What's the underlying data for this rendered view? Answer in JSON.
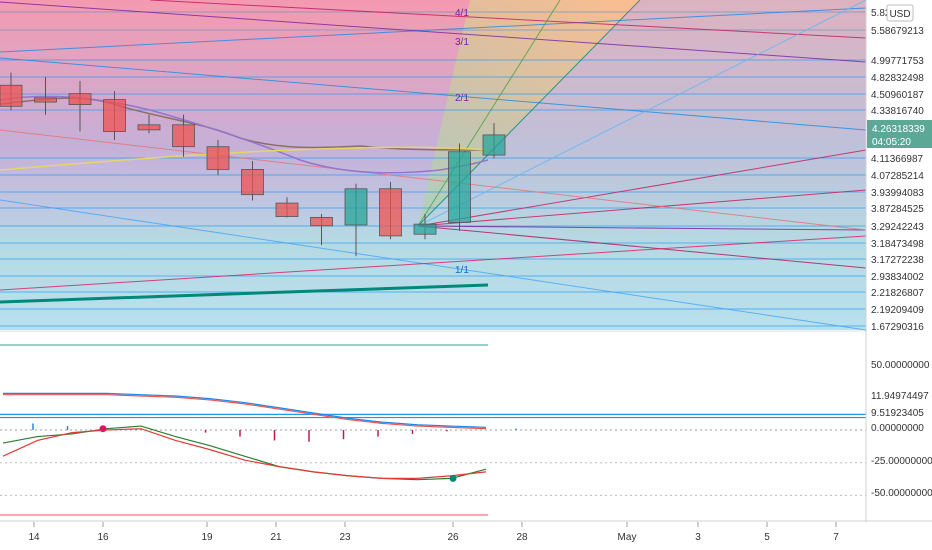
{
  "chart_data": [
    {
      "type": "candlestick",
      "currency": "USD",
      "last_price": "4.26318339",
      "countdown": "04:05:20",
      "x_ticks": [
        "14",
        "16",
        "19",
        "21",
        "23",
        "26",
        "28",
        "May",
        "3",
        "5",
        "7"
      ],
      "price_labels": [
        "5.82...13",
        "5.58679213",
        "4.99771753",
        "4.82832498",
        "4.50960187",
        "4.33816740",
        "4.11366987",
        "4.07285214",
        "3.93994083",
        "3.87284525",
        "3.29242243",
        "3.18473498",
        "3.17272238",
        "2.93834002",
        "2.21826807",
        "2.19209409",
        "1.67290316"
      ],
      "candles": [
        {
          "date": "Apr 13",
          "open": 4.85,
          "high": 5.0,
          "low": 4.55,
          "close": 4.6
        },
        {
          "date": "Apr 14",
          "open": 4.7,
          "high": 4.95,
          "low": 4.5,
          "close": 4.65
        },
        {
          "date": "Apr 15",
          "open": 4.75,
          "high": 4.9,
          "low": 4.3,
          "close": 4.62
        },
        {
          "date": "Apr 16",
          "open": 4.68,
          "high": 4.78,
          "low": 4.2,
          "close": 4.3
        },
        {
          "date": "Apr 17",
          "open": 4.38,
          "high": 4.5,
          "low": 4.28,
          "close": 4.32
        },
        {
          "date": "Apr 18",
          "open": 4.38,
          "high": 4.5,
          "low": 4.0,
          "close": 4.12
        },
        {
          "date": "Apr 19",
          "open": 4.12,
          "high": 4.2,
          "low": 3.78,
          "close": 3.85
        },
        {
          "date": "Apr 20",
          "open": 3.85,
          "high": 3.95,
          "low": 3.48,
          "close": 3.55
        },
        {
          "date": "Apr 21",
          "open": 3.45,
          "high": 3.52,
          "low": 3.28,
          "close": 3.29
        },
        {
          "date": "Apr 22",
          "open": 3.28,
          "high": 3.32,
          "low": 2.95,
          "close": 3.18
        },
        {
          "date": "Apr 23",
          "open": 3.19,
          "high": 3.68,
          "low": 2.82,
          "close": 3.62
        },
        {
          "date": "Apr 24",
          "open": 3.62,
          "high": 3.7,
          "low": 3.02,
          "close": 3.06
        },
        {
          "date": "Apr 25",
          "open": 3.08,
          "high": 3.32,
          "low": 3.02,
          "close": 3.2
        },
        {
          "date": "Apr 26",
          "open": 3.22,
          "high": 4.16,
          "low": 3.12,
          "close": 4.06
        },
        {
          "date": "Apr 27",
          "open": 4.02,
          "high": 4.4,
          "low": 3.98,
          "close": 4.26
        }
      ],
      "gann_labels": [
        "4/1",
        "3/1",
        "2/1",
        "1/1"
      ],
      "colors": {
        "up": "#26a69a",
        "down": "#ef5350",
        "line_blue": "#2196f3",
        "line_teal": "#00897b",
        "line_purple": "#7b1fa2",
        "line_red": "#c2185b"
      }
    },
    {
      "type": "line",
      "indicator_labels": [
        "50.00000000",
        "11.94974497",
        "9.51923405",
        "0.00000000",
        "-25.00000000",
        "-50.00000000"
      ],
      "ylim": [
        -60,
        60
      ],
      "levels": [
        65,
        11.94974497,
        9.51923405,
        0,
        -25,
        -50,
        -65
      ],
      "series": [
        {
          "values": [
            27,
            27,
            27,
            27,
            26,
            25,
            23,
            20,
            16,
            12,
            8,
            5,
            3,
            2,
            1
          ]
        },
        {
          "values": [
            28,
            28,
            28,
            28,
            27,
            26,
            24,
            21,
            17,
            13,
            9,
            6,
            4,
            3,
            2
          ]
        },
        {
          "values": [
            -10,
            -5,
            -3,
            1,
            3,
            -5,
            -12,
            -20,
            -28,
            -32,
            -35,
            -37,
            -38,
            -37,
            -30
          ]
        },
        {
          "values": [
            -20,
            -8,
            -2,
            0,
            1,
            -8,
            -15,
            -23,
            -28,
            -32,
            -35,
            -37,
            -37,
            -35,
            -32
          ]
        }
      ],
      "histogram": [
        5,
        3,
        2,
        1,
        0,
        -2,
        -5,
        -8,
        -9,
        -7,
        -5,
        -3,
        -1,
        0,
        1
      ]
    }
  ]
}
